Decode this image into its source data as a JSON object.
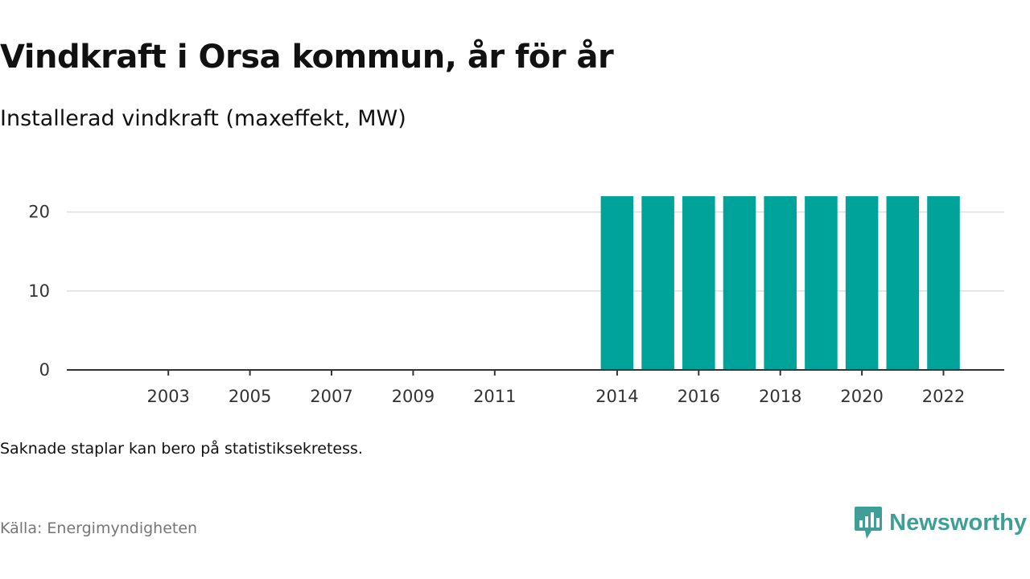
{
  "header": {
    "title": "Vindkraft i Orsa kommun, år för år",
    "subtitle": "Installerad vindkraft (maxeffekt, MW)"
  },
  "footer": {
    "note": "Saknade staplar kan bero på statistiksekretess.",
    "source": "Källa: Energimyndigheten",
    "brand": "Newsworthy"
  },
  "colors": {
    "bar": "#00a39a",
    "grid": "#dddddd",
    "axis": "#333333",
    "brand": "#3f9f96"
  },
  "chart_data": {
    "type": "bar",
    "x": [
      2002,
      2003,
      2004,
      2005,
      2006,
      2007,
      2008,
      2009,
      2010,
      2011,
      2012,
      2013,
      2014,
      2015,
      2016,
      2017,
      2018,
      2019,
      2020,
      2021,
      2022
    ],
    "values": [
      null,
      null,
      null,
      null,
      null,
      null,
      null,
      null,
      null,
      null,
      null,
      null,
      22,
      22,
      22,
      22,
      22,
      22,
      22,
      22,
      22
    ],
    "x_tick_labels": [
      "2003",
      "2005",
      "2007",
      "2009",
      "2011",
      "2014",
      "2016",
      "2018",
      "2020",
      "2022"
    ],
    "y_ticks": [
      0,
      10,
      20
    ],
    "ylim": [
      0,
      22
    ],
    "grid": true,
    "legend": "none"
  }
}
